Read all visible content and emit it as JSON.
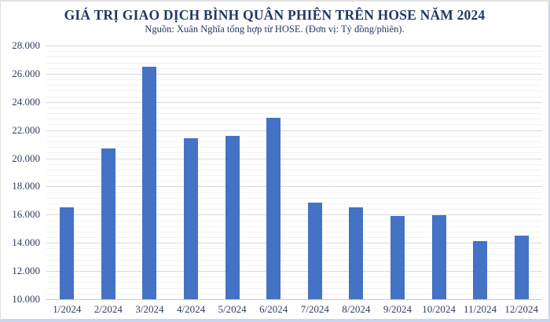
{
  "header": {
    "title": "GIÁ TRỊ GIAO DỊCH BÌNH QUÂN PHIÊN TRÊN HOSE NĂM 2024",
    "subtitle": "Nguồn: Xuân Nghĩa tổng hợp từ HOSE. (Đơn vị: Tỷ đồng/phiên)."
  },
  "chart_data": {
    "type": "bar",
    "title": "GIÁ TRỊ GIAO DỊCH BÌNH QUÂN PHIÊN TRÊN HOSE NĂM 2024",
    "subtitle": "Nguồn: Xuân Nghĩa tổng hợp từ HOSE. (Đơn vị: Tỷ đồng/phiên).",
    "unit": "Tỷ đồng/phiên",
    "categories": [
      "1/2024",
      "2/2024",
      "3/2024",
      "4/2024",
      "5/2024",
      "6/2024",
      "7/2024",
      "8/2024",
      "9/2024",
      "10/2024",
      "11/2024",
      "12/2024"
    ],
    "values": [
      16500,
      20700,
      26500,
      21400,
      21600,
      22900,
      16850,
      16500,
      15900,
      15950,
      14150,
      14500
    ],
    "xlabel": "",
    "ylabel": "",
    "ylim": [
      10000,
      28000
    ],
    "y_major_step": 2000,
    "y_minor_step": 400,
    "y_tick_labels": [
      "10.000",
      "12.000",
      "14.000",
      "16.000",
      "18.000",
      "20.000",
      "22.000",
      "24.000",
      "26.000",
      "28.000"
    ],
    "grid": "on",
    "legend": "none",
    "bar_color": "#4472c4"
  },
  "colors": {
    "bar": "#4472c4",
    "title_text": "#1f3864",
    "tick_text": "#2e3f5f",
    "major_grid": "#d9d9d9",
    "minor_grid": "#f2f2f2"
  }
}
